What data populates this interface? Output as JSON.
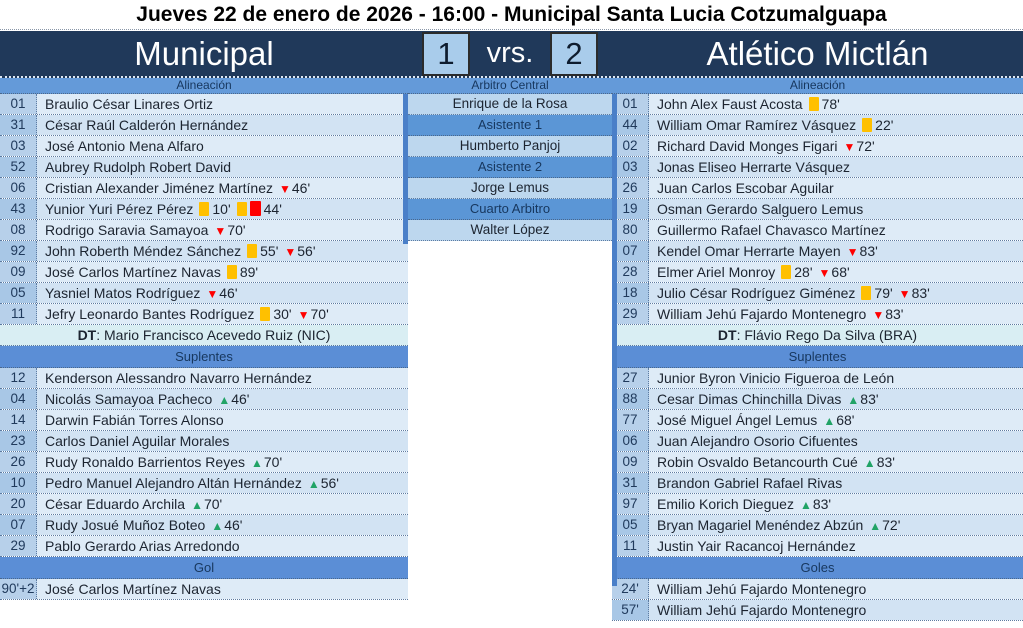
{
  "title": "Jueves 22 de enero de 2026 - 16:00 - Municipal Santa Lucia Cotzumalguapa",
  "scoreboard": {
    "home_team": "Municipal",
    "home_score": "1",
    "versus": "vrs.",
    "away_score": "2",
    "away_team": "Atlético Mictlán"
  },
  "officials": [
    {
      "role": "Arbitro Central",
      "name": "Enrique de la Rosa"
    },
    {
      "role": "Asistente 1",
      "name": "Humberto Panjoj"
    },
    {
      "role": "Asistente 2",
      "name": "Jorge Lemus"
    },
    {
      "role": "Cuarto Arbitro",
      "name": "Walter López"
    }
  ],
  "home": {
    "section_lineup": "Alineación",
    "section_subs": "Suplentes",
    "section_goals": "Gol",
    "dt_label": "DT",
    "dt_text": ": Mario Francisco Acevedo Ruiz (NIC)",
    "lineup": [
      {
        "num": "01",
        "name": "Braulio César Linares Ortiz",
        "events": []
      },
      {
        "num": "31",
        "name": "César Raúl Calderón Hernández",
        "events": []
      },
      {
        "num": "03",
        "name": "José Antonio Mena Alfaro",
        "events": []
      },
      {
        "num": "52",
        "name": "Aubrey Rudolph Robert David",
        "events": []
      },
      {
        "num": "06",
        "name": "Cristian Alexander Jiménez Martínez",
        "events": [
          {
            "t": "out",
            "m": "46'"
          }
        ]
      },
      {
        "num": "43",
        "name": "Yunior Yuri Pérez Pérez",
        "events": [
          {
            "t": "y",
            "m": "10'"
          },
          {
            "t": "yr",
            "m": "44'"
          }
        ]
      },
      {
        "num": "08",
        "name": "Rodrigo Saravia Samayoa",
        "events": [
          {
            "t": "out",
            "m": "70'"
          }
        ]
      },
      {
        "num": "92",
        "name": "John Roberth Méndez Sánchez",
        "events": [
          {
            "t": "y",
            "m": "55'"
          },
          {
            "t": "out",
            "m": "56'"
          }
        ]
      },
      {
        "num": "09",
        "name": "José Carlos Martínez Navas",
        "events": [
          {
            "t": "y",
            "m": "89'"
          }
        ]
      },
      {
        "num": "05",
        "name": "Yasniel Matos Rodríguez",
        "events": [
          {
            "t": "out",
            "m": "46'"
          }
        ]
      },
      {
        "num": "11",
        "name": "Jefry Leonardo Bantes Rodríguez",
        "events": [
          {
            "t": "y",
            "m": "30'"
          },
          {
            "t": "out",
            "m": "70'"
          }
        ]
      }
    ],
    "subs": [
      {
        "num": "12",
        "name": "Kenderson Alessandro Navarro Hernández",
        "events": []
      },
      {
        "num": "04",
        "name": "Nicolás Samayoa Pacheco",
        "events": [
          {
            "t": "in",
            "m": "46'"
          }
        ]
      },
      {
        "num": "14",
        "name": "Darwin Fabián Torres Alonso",
        "events": []
      },
      {
        "num": "23",
        "name": "Carlos Daniel Aguilar Morales",
        "events": []
      },
      {
        "num": "26",
        "name": "Rudy Ronaldo Barrientos Reyes",
        "events": [
          {
            "t": "in",
            "m": "70'"
          }
        ]
      },
      {
        "num": "10",
        "name": "Pedro Manuel Alejandro Altán Hernández",
        "events": [
          {
            "t": "in",
            "m": "56'"
          }
        ]
      },
      {
        "num": "20",
        "name": "César Eduardo Archila",
        "events": [
          {
            "t": "in",
            "m": "70'"
          }
        ]
      },
      {
        "num": "07",
        "name": "Rudy Josué Muñoz Boteo",
        "events": [
          {
            "t": "in",
            "m": "46'"
          }
        ]
      },
      {
        "num": "29",
        "name": "Pablo Gerardo Arias Arredondo",
        "events": []
      }
    ],
    "goals": [
      {
        "num": "90'+2",
        "name": "José Carlos Martínez Navas",
        "events": []
      }
    ]
  },
  "away": {
    "section_lineup": "Alineación",
    "section_subs": "Suplentes",
    "section_goals": "Goles",
    "dt_label": "DT",
    "dt_text": ": Flávio Rego Da Silva (BRA)",
    "lineup": [
      {
        "num": "01",
        "name": "John Alex Faust Acosta",
        "events": [
          {
            "t": "y",
            "m": "78'"
          }
        ]
      },
      {
        "num": "44",
        "name": "William Omar Ramírez Vásquez",
        "events": [
          {
            "t": "y",
            "m": "22'"
          }
        ]
      },
      {
        "num": "02",
        "name": "Richard David Monges Figari",
        "events": [
          {
            "t": "out",
            "m": "72'"
          }
        ]
      },
      {
        "num": "03",
        "name": "Jonas Eliseo Herrarte Vásquez",
        "events": []
      },
      {
        "num": "26",
        "name": "Juan Carlos Escobar Aguilar",
        "events": []
      },
      {
        "num": "19",
        "name": "Osman Gerardo Salguero Lemus",
        "events": []
      },
      {
        "num": "80",
        "name": "Guillermo Rafael Chavasco Martínez",
        "events": []
      },
      {
        "num": "07",
        "name": "Kendel Omar Herrarte Mayen",
        "events": [
          {
            "t": "out",
            "m": "83'"
          }
        ]
      },
      {
        "num": "28",
        "name": "Elmer Ariel Monroy",
        "events": [
          {
            "t": "y",
            "m": "28'"
          },
          {
            "t": "out",
            "m": "68'"
          }
        ]
      },
      {
        "num": "18",
        "name": "Julio César Rodríguez Giménez",
        "events": [
          {
            "t": "y",
            "m": "79'"
          },
          {
            "t": "out",
            "m": "83'"
          }
        ]
      },
      {
        "num": "29",
        "name": "William Jehú Fajardo Montenegro",
        "events": [
          {
            "t": "out",
            "m": "83'"
          }
        ]
      }
    ],
    "subs": [
      {
        "num": "27",
        "name": "Junior Byron Vinicio Figueroa de León",
        "events": []
      },
      {
        "num": "88",
        "name": "Cesar Dimas Chinchilla Divas",
        "events": [
          {
            "t": "in",
            "m": "83'"
          }
        ]
      },
      {
        "num": "77",
        "name": "José Miguel Ángel Lemus",
        "events": [
          {
            "t": "in",
            "m": "68'"
          }
        ]
      },
      {
        "num": "06",
        "name": "Juan Alejandro Osorio Cifuentes",
        "events": []
      },
      {
        "num": "09",
        "name": "Robin Osvaldo Betancourth Cué",
        "events": [
          {
            "t": "in",
            "m": "83'"
          }
        ]
      },
      {
        "num": "31",
        "name": "Brandon Gabriel Rafael Rivas",
        "events": []
      },
      {
        "num": "97",
        "name": "Emilio Korich Dieguez",
        "events": [
          {
            "t": "in",
            "m": "83'"
          }
        ]
      },
      {
        "num": "05",
        "name": "Bryan Magariel Menéndez Abzún",
        "events": [
          {
            "t": "in",
            "m": "72'"
          }
        ]
      },
      {
        "num": "11",
        "name": "Justin Yair Racancoj Hernández",
        "events": []
      }
    ],
    "goals": [
      {
        "num": "24'",
        "name": "William Jehú Fajardo Montenegro",
        "events": []
      },
      {
        "num": "57'",
        "name": "William Jehú Fajardo Montenegro",
        "events": []
      }
    ]
  },
  "colors": {
    "band_navy": "#20395a",
    "section_header_blue": "#5b8ed6",
    "thin_header_blue": "#649ad9",
    "row_light": "#deebf7",
    "row_alt": "#d2e3f3",
    "num_cell": "#b7d0ea",
    "officials_row": "#bdd7ee",
    "coach_row": "#d9eef3",
    "scorebox_bg": "#a9cceb",
    "yellow_card": "#ffc000",
    "red_card": "#ff0000",
    "sub_in_green": "#21a366",
    "sub_out_red": "#ff0000"
  }
}
